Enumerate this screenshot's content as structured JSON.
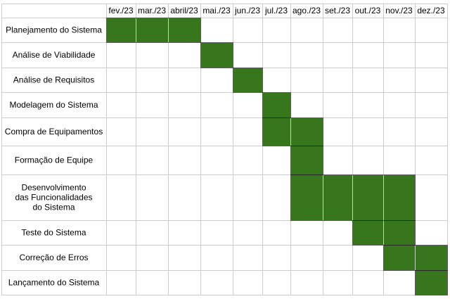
{
  "chart_data": {
    "type": "table",
    "months": [
      "fev./23",
      "mar./23",
      "abril/23",
      "mai./23",
      "jun./23",
      "jul./23",
      "ago./23",
      "set./23",
      "out./23",
      "nov./23",
      "dez./23"
    ],
    "tasks": [
      {
        "label": "Planejamento do Sistema",
        "start": "fev./23",
        "end": "abril/23"
      },
      {
        "label": "Análise de Viabilidade",
        "start": "mai./23",
        "end": "mai./23"
      },
      {
        "label": "Análise de Requisitos",
        "start": "jun./23",
        "end": "jun./23"
      },
      {
        "label": "Modelagem do Sistema",
        "start": "jul./23",
        "end": "jul./23"
      },
      {
        "label": "Compra de Equipamentos",
        "start": "jul./23",
        "end": "ago./23"
      },
      {
        "label": "Formação de Equipe",
        "start": "ago./23",
        "end": "ago./23"
      },
      {
        "label": "Desenvolvimento\ndas Funcionalidades\ndo Sistema",
        "start": "ago./23",
        "end": "nov./23"
      },
      {
        "label": "Teste do Sistema",
        "start": "out./23",
        "end": "nov./23"
      },
      {
        "label": "Correção de Erros",
        "start": "nov./23",
        "end": "dez./23"
      },
      {
        "label": "Lançamento do Sistema",
        "start": "dez./23",
        "end": "dez./23"
      }
    ],
    "colors": {
      "bar": "#38761d",
      "grid": "#cccccc",
      "bar_border": "#000000"
    }
  }
}
